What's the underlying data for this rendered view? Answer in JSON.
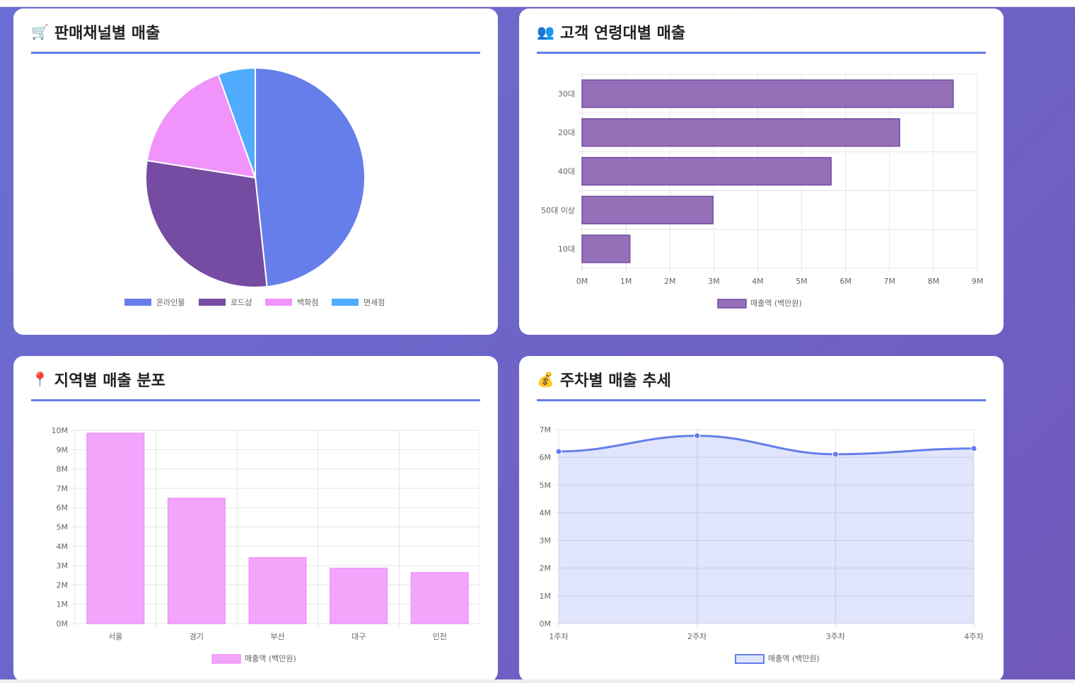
{
  "cards": {
    "channel": {
      "title": "판매채널별 매출",
      "icon": "🛒"
    },
    "age": {
      "title": "고객 연령대별 매출",
      "icon": "👥"
    },
    "region": {
      "title": "지역별 매출 분포",
      "icon": "📍"
    },
    "weekly": {
      "title": "주차별 매출 추세",
      "icon": "💰"
    }
  },
  "chart_data": [
    {
      "type": "pie",
      "labels": [
        "온라인몰",
        "로드샵",
        "백화점",
        "면세점"
      ],
      "values": [
        48.3,
        29.2,
        17.0,
        5.5
      ],
      "colors": [
        "#667eea",
        "#764ba2",
        "#f093fb",
        "#4facfe"
      ],
      "legend": "bottom"
    },
    {
      "type": "bar",
      "orientation": "horizontal",
      "categories": [
        "30대",
        "20대",
        "40대",
        "50대 이상",
        "10대"
      ],
      "values": [
        8.45,
        7.23,
        5.67,
        2.98,
        1.09
      ],
      "series_name": "매출액 (백만원)",
      "xticks": [
        "0M",
        "1M",
        "2M",
        "3M",
        "4M",
        "5M",
        "6M",
        "7M",
        "8M",
        "9M"
      ],
      "xlim": [
        0,
        9
      ],
      "color": "#9370b8"
    },
    {
      "type": "bar",
      "categories": [
        "서울",
        "경기",
        "부산",
        "대구",
        "인천"
      ],
      "values": [
        9.85,
        6.48,
        3.41,
        2.86,
        2.64
      ],
      "series_name": "매출액 (백만원)",
      "yticks": [
        "0M",
        "1M",
        "2M",
        "3M",
        "4M",
        "5M",
        "6M",
        "7M",
        "8M",
        "9M",
        "10M"
      ],
      "ylim": [
        0,
        10
      ],
      "color": "#f2a6fb"
    },
    {
      "type": "area",
      "categories": [
        "1주차",
        "2주차",
        "3주차",
        "4주차"
      ],
      "values": [
        6.21,
        6.78,
        6.11,
        6.32
      ],
      "series_name": "매출액 (백만원)",
      "yticks": [
        "0M",
        "1M",
        "2M",
        "3M",
        "4M",
        "5M",
        "6M",
        "7M"
      ],
      "ylim": [
        0,
        7
      ],
      "color": "#667eea"
    }
  ]
}
